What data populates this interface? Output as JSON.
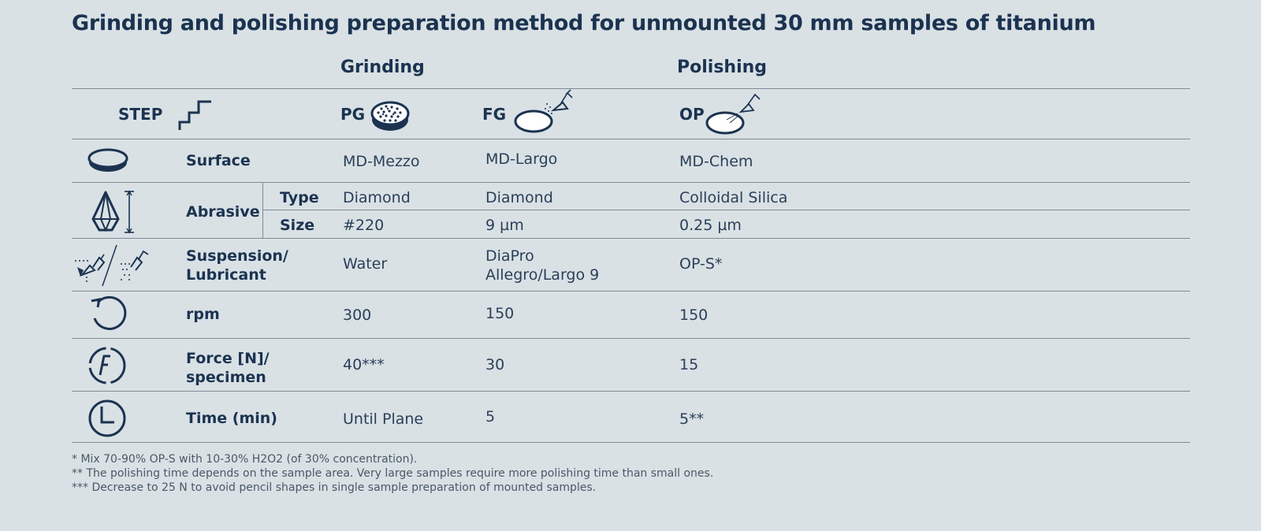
{
  "title": "Grinding and polishing preparation method for unmounted 30 mm samples of titanium",
  "groups": {
    "grinding": "Grinding",
    "polishing": "Polishing"
  },
  "header": {
    "step": "STEP",
    "pg": "PG",
    "fg": "FG",
    "op": "OP"
  },
  "rows": {
    "surface": {
      "label": "Surface",
      "pg": "MD-Mezzo",
      "fg": "MD-Largo",
      "op": "MD-Chem"
    },
    "abrasive": {
      "label": "Abrasive",
      "type_label": "Type",
      "size_label": "Size",
      "type": {
        "pg": "Diamond",
        "fg": "Diamond",
        "op": "Colloidal Silica"
      },
      "size": {
        "pg": "#220",
        "fg": "9 µm",
        "op": "0.25 µm"
      }
    },
    "suspension": {
      "label_line1": "Suspension/",
      "label_line2": "Lubricant",
      "pg": "Water",
      "fg_line1": "DiaPro",
      "fg_line2": "Allegro/Largo 9",
      "op": "OP-S*"
    },
    "rpm": {
      "label": "rpm",
      "pg": "300",
      "fg": "150",
      "op": "150"
    },
    "force": {
      "label_line1": "Force [N]/",
      "label_line2": "specimen",
      "pg": "40***",
      "fg": "30",
      "op": "15"
    },
    "time": {
      "label": "Time (min)",
      "pg": "Until Plane",
      "fg": "5",
      "op": "5**"
    }
  },
  "icons": {
    "step": "staircase-icon",
    "pg": "grinding-disc-icon",
    "fg": "disc-with-spray-icon",
    "op": "disc-with-spray-icon",
    "surface": "disc-icon",
    "abrasive": "diamond-abrasive-icon",
    "suspension": "spray-bottles-icon",
    "rpm": "rotation-arrow-icon",
    "force": "force-icon",
    "time": "clock-icon"
  },
  "footnotes": [
    "* Mix 70-90% OP-S with 10-30% H2O2 (of 30% concentration).",
    "** The polishing time depends on the sample area. Very large samples require more polishing time than small ones.",
    "*** Decrease to 25 N to avoid pencil shapes in single sample preparation of mounted samples."
  ],
  "colors": {
    "background": "#d9e1e5",
    "text": "#1b3350",
    "rule": "#7f8b95"
  }
}
